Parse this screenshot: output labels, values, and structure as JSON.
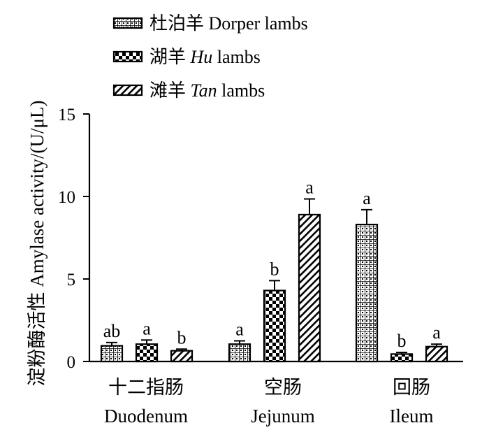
{
  "chart_data": {
    "type": "bar",
    "ylabel": "淀粉酶活性 Amylase activity/(U/μL)",
    "ylim": [
      0,
      15
    ],
    "yticks": [
      0,
      5,
      10,
      15
    ],
    "categories": [
      {
        "zh": "十二指肠",
        "en": "Duodenum"
      },
      {
        "zh": "空肠",
        "en": "Jejunum"
      },
      {
        "zh": "回肠",
        "en": "Ileum"
      }
    ],
    "series": [
      {
        "zh": "杜泊羊",
        "en": "Dorper",
        "suffix": "lambs",
        "pattern": "grid",
        "values": [
          0.95,
          1.05,
          8.3
        ],
        "errors": [
          0.2,
          0.2,
          0.9
        ],
        "labels": [
          "ab",
          "a",
          "a"
        ]
      },
      {
        "zh": "湖羊",
        "en": "Hu",
        "suffix": "lambs",
        "pattern": "checker",
        "values": [
          1.05,
          4.3,
          0.45
        ],
        "errors": [
          0.25,
          0.6,
          0.1
        ],
        "labels": [
          "a",
          "b",
          "b"
        ]
      },
      {
        "zh": "滩羊",
        "en": "Tan",
        "suffix": "lambs",
        "pattern": "stripe",
        "values": [
          0.65,
          8.9,
          0.9
        ],
        "errors": [
          0.1,
          0.95,
          0.15
        ],
        "labels": [
          "b",
          "a",
          "a"
        ]
      }
    ],
    "legend_position": "top-left",
    "grid": false
  }
}
